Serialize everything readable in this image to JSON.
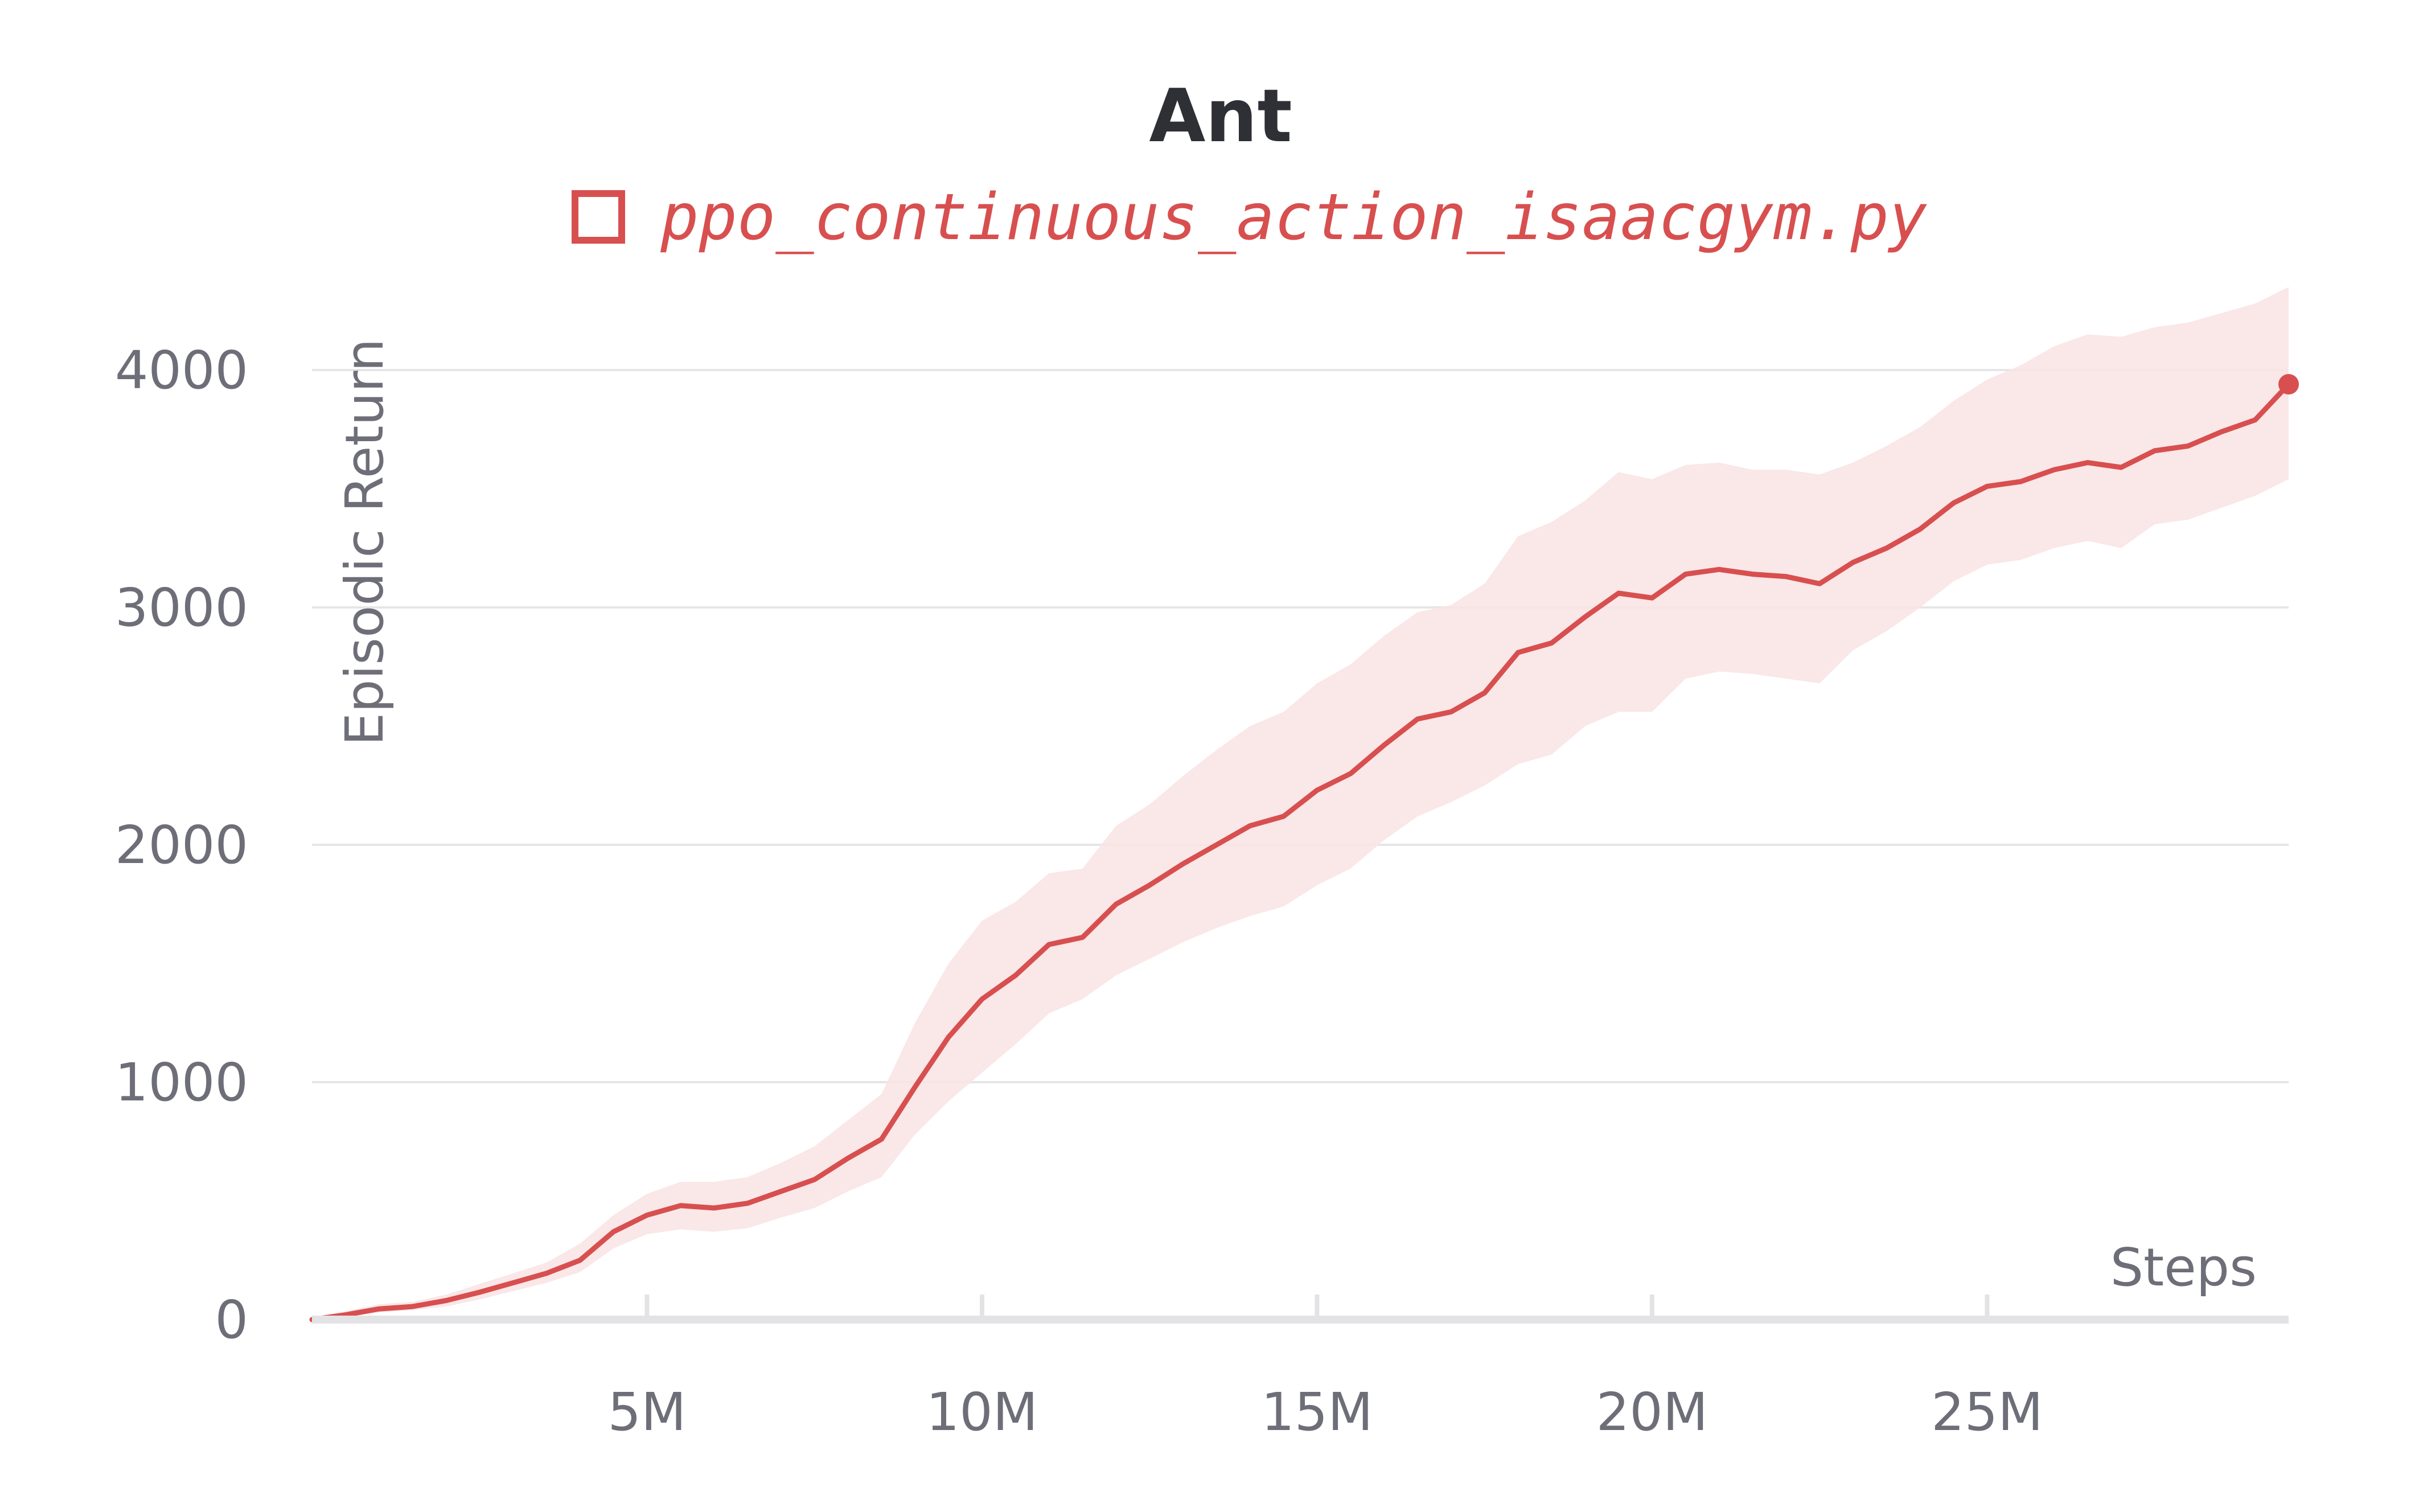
{
  "chart_data": {
    "type": "line",
    "title": "Ant",
    "xlabel": "Steps",
    "ylabel": "Episodic Return",
    "xlim": [
      0,
      29500000
    ],
    "ylim": [
      0,
      4000
    ],
    "x_ticks": [
      5000000,
      10000000,
      15000000,
      20000000,
      25000000
    ],
    "x_tick_labels": [
      "5M",
      "10M",
      "15M",
      "20M",
      "25M"
    ],
    "y_ticks": [
      0,
      1000,
      2000,
      3000,
      4000
    ],
    "y_tick_labels": [
      "0",
      "1000",
      "2000",
      "3000",
      "4000"
    ],
    "grid": true,
    "legend_position": "top-center",
    "colors": {
      "line": "#d84f4f",
      "band": "#f9e3e4",
      "grid": "#e6e6e8",
      "axis": "#e3e3e5"
    },
    "series": [
      {
        "name": "ppo_continuous_action_isaacgym.py",
        "x": [
          0,
          500000,
          1000000,
          1500000,
          2000000,
          2500000,
          3000000,
          3500000,
          4000000,
          4500000,
          5000000,
          5500000,
          6000000,
          6500000,
          7000000,
          7500000,
          8000000,
          8500000,
          9000000,
          9500000,
          10000000,
          10500000,
          11000000,
          11500000,
          12000000,
          12500000,
          13000000,
          13500000,
          14000000,
          14500000,
          15000000,
          15500000,
          16000000,
          16500000,
          17000000,
          17500000,
          18000000,
          18500000,
          19000000,
          19500000,
          20000000,
          20500000,
          21000000,
          21500000,
          22000000,
          22500000,
          23000000,
          23500000,
          24000000,
          24500000,
          25000000,
          25500000,
          26000000,
          26500000,
          27000000,
          27500000,
          28000000,
          28500000,
          29000000,
          29500000
        ],
        "y": [
          0,
          20,
          45,
          55,
          80,
          115,
          155,
          195,
          250,
          370,
          440,
          480,
          470,
          490,
          540,
          590,
          680,
          760,
          980,
          1190,
          1350,
          1450,
          1580,
          1610,
          1750,
          1830,
          1920,
          2000,
          2080,
          2120,
          2230,
          2300,
          2420,
          2530,
          2560,
          2640,
          2810,
          2850,
          2960,
          3060,
          3040,
          3140,
          3160,
          3140,
          3130,
          3100,
          3190,
          3250,
          3330,
          3440,
          3510,
          3530,
          3580,
          3610,
          3590,
          3660,
          3680,
          3740,
          3790,
          3940
        ],
        "lower": [
          0,
          10,
          30,
          40,
          55,
          85,
          120,
          155,
          200,
          300,
          360,
          380,
          370,
          385,
          430,
          470,
          540,
          600,
          780,
          920,
          1040,
          1160,
          1290,
          1350,
          1450,
          1520,
          1590,
          1650,
          1700,
          1740,
          1830,
          1900,
          2020,
          2120,
          2180,
          2250,
          2340,
          2380,
          2500,
          2560,
          2560,
          2700,
          2730,
          2720,
          2700,
          2680,
          2820,
          2900,
          3000,
          3110,
          3180,
          3200,
          3250,
          3280,
          3250,
          3350,
          3370,
          3420,
          3470,
          3540
        ],
        "upper": [
          10,
          35,
          65,
          75,
          105,
          150,
          195,
          240,
          320,
          440,
          530,
          580,
          580,
          600,
          660,
          730,
          840,
          950,
          1250,
          1500,
          1680,
          1760,
          1880,
          1900,
          2080,
          2170,
          2290,
          2400,
          2500,
          2560,
          2680,
          2760,
          2880,
          2980,
          3010,
          3100,
          3300,
          3360,
          3450,
          3570,
          3540,
          3600,
          3610,
          3580,
          3580,
          3560,
          3610,
          3680,
          3760,
          3870,
          3960,
          4020,
          4100,
          4150,
          4140,
          4180,
          4200,
          4240,
          4280,
          4350
        ]
      }
    ]
  }
}
